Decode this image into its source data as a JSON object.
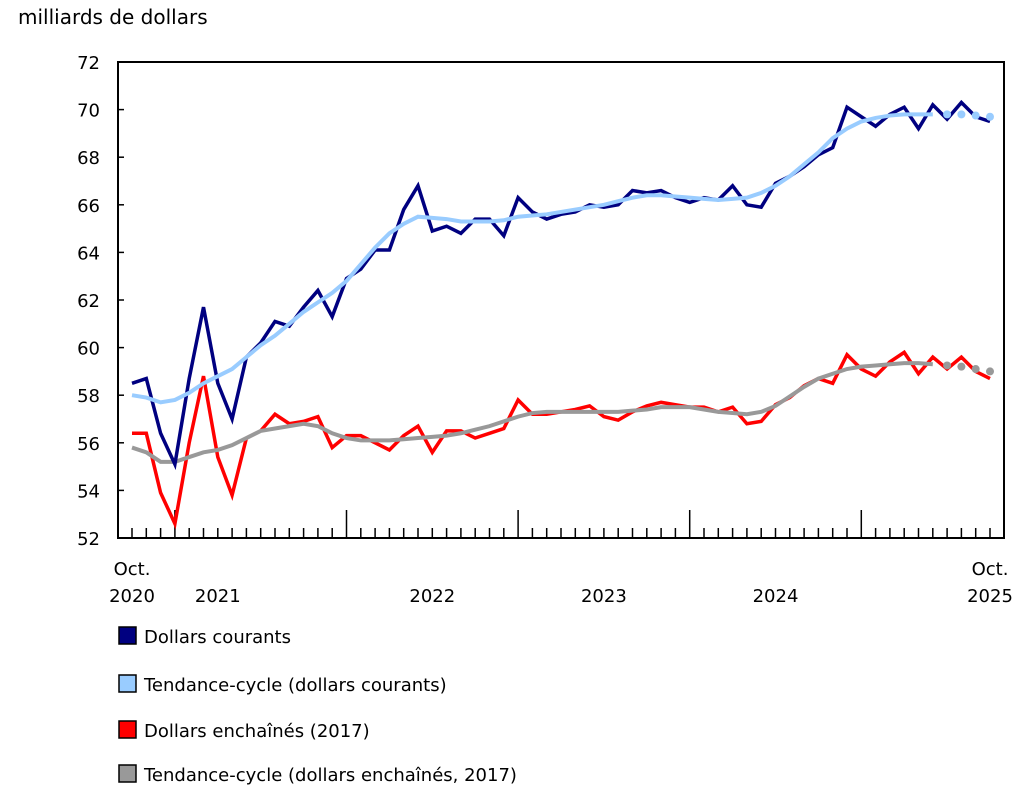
{
  "chart_data": {
    "type": "line",
    "ylabel": "milliards de dollars",
    "ylim": [
      52,
      72
    ],
    "yticks": [
      52,
      54,
      56,
      58,
      60,
      62,
      64,
      66,
      68,
      70,
      72
    ],
    "grid": false,
    "legend_position": "bottom",
    "x_start": "2020-10",
    "x_end": "2025-10",
    "x_tick_labels": [
      {
        "month": "2020-10",
        "lines": [
          "Oct.",
          "2020"
        ]
      },
      {
        "month": "2021-04",
        "lines": [
          "",
          "2021"
        ]
      },
      {
        "month": "2022-07",
        "lines": [
          "",
          "2022"
        ]
      },
      {
        "month": "2023-07",
        "lines": [
          "",
          "2023"
        ]
      },
      {
        "month": "2024-07",
        "lines": [
          "",
          "2024"
        ]
      },
      {
        "month": "2025-10",
        "lines": [
          "Oct.",
          "2025"
        ]
      }
    ],
    "series": [
      {
        "name": "Dollars courants",
        "color": "#000080",
        "style": "line",
        "values": [
          58.5,
          58.7,
          56.4,
          55.1,
          58.7,
          61.7,
          58.5,
          57.0,
          59.6,
          60.2,
          61.1,
          60.9,
          61.7,
          62.4,
          61.3,
          62.9,
          63.3,
          64.1,
          64.1,
          65.8,
          66.8,
          64.9,
          65.1,
          64.8,
          65.4,
          65.4,
          64.7,
          66.3,
          65.7,
          65.4,
          65.6,
          65.7,
          66.0,
          65.9,
          66.0,
          66.6,
          66.5,
          66.6,
          66.3,
          66.1,
          66.3,
          66.2,
          66.8,
          66.0,
          65.9,
          66.9,
          67.2,
          67.6,
          68.1,
          68.4,
          70.1,
          69.7,
          69.3,
          69.8,
          70.1,
          69.2,
          70.2,
          69.6,
          70.3,
          69.7,
          69.5
        ]
      },
      {
        "name": "Tendance-cycle (dollars courants)",
        "color": "#99ccff",
        "style": "trend",
        "solid_until_index": 56,
        "values": [
          58.0,
          57.9,
          57.7,
          57.8,
          58.1,
          58.5,
          58.8,
          59.1,
          59.6,
          60.1,
          60.5,
          61.0,
          61.5,
          61.9,
          62.3,
          62.8,
          63.5,
          64.2,
          64.8,
          65.2,
          65.5,
          65.45,
          65.4,
          65.3,
          65.3,
          65.3,
          65.35,
          65.5,
          65.55,
          65.6,
          65.7,
          65.8,
          65.9,
          66.0,
          66.15,
          66.3,
          66.4,
          66.4,
          66.35,
          66.3,
          66.25,
          66.2,
          66.25,
          66.3,
          66.5,
          66.8,
          67.2,
          67.7,
          68.2,
          68.8,
          69.2,
          69.5,
          69.65,
          69.75,
          69.8,
          69.8,
          69.8,
          69.8,
          69.8,
          69.75,
          69.7
        ]
      },
      {
        "name": "Dollars enchaînés (2017)",
        "color": "#ff0000",
        "style": "line",
        "values": [
          56.4,
          56.4,
          53.9,
          52.6,
          56.0,
          58.8,
          55.4,
          53.8,
          56.2,
          56.5,
          57.2,
          56.8,
          56.9,
          57.1,
          55.8,
          56.3,
          56.3,
          56.0,
          55.7,
          56.3,
          56.7,
          55.6,
          56.5,
          56.5,
          56.2,
          56.4,
          56.6,
          57.8,
          57.2,
          57.2,
          57.3,
          57.4,
          57.55,
          57.1,
          56.95,
          57.3,
          57.55,
          57.7,
          57.6,
          57.5,
          57.5,
          57.3,
          57.5,
          56.8,
          56.9,
          57.6,
          57.9,
          58.4,
          58.7,
          58.5,
          59.7,
          59.1,
          58.8,
          59.4,
          59.8,
          58.9,
          59.6,
          59.1,
          59.6,
          59.0,
          58.7
        ]
      },
      {
        "name": "Tendance-cycle (dollars enchaînés, 2017)",
        "color": "#999999",
        "style": "trend",
        "solid_until_index": 56,
        "values": [
          55.8,
          55.6,
          55.2,
          55.2,
          55.4,
          55.6,
          55.7,
          55.9,
          56.2,
          56.5,
          56.6,
          56.7,
          56.8,
          56.7,
          56.4,
          56.2,
          56.1,
          56.1,
          56.1,
          56.15,
          56.2,
          56.25,
          56.3,
          56.4,
          56.55,
          56.7,
          56.9,
          57.1,
          57.25,
          57.3,
          57.3,
          57.3,
          57.3,
          57.3,
          57.3,
          57.35,
          57.4,
          57.5,
          57.5,
          57.5,
          57.4,
          57.3,
          57.25,
          57.2,
          57.3,
          57.55,
          57.95,
          58.35,
          58.7,
          58.9,
          59.1,
          59.2,
          59.25,
          59.3,
          59.35,
          59.35,
          59.3,
          59.25,
          59.2,
          59.1,
          59.0
        ]
      }
    ]
  }
}
